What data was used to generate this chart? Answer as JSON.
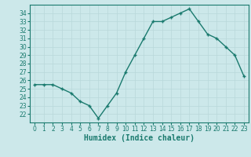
{
  "x": [
    0,
    1,
    2,
    3,
    4,
    5,
    6,
    7,
    8,
    9,
    10,
    11,
    12,
    13,
    14,
    15,
    16,
    17,
    18,
    19,
    20,
    21,
    22,
    23
  ],
  "y": [
    25.5,
    25.5,
    25.5,
    25.0,
    24.5,
    23.5,
    23.0,
    21.5,
    23.0,
    24.5,
    27.0,
    29.0,
    31.0,
    33.0,
    33.0,
    33.5,
    34.0,
    34.5,
    33.0,
    31.5,
    31.0,
    30.0,
    29.0,
    26.5
  ],
  "line_color": "#1a7a6e",
  "marker_color": "#1a7a6e",
  "bg_color": "#cce8ea",
  "grid_color": "#b8d8da",
  "xlabel": "Humidex (Indice chaleur)",
  "xlim": [
    -0.5,
    23.5
  ],
  "ylim": [
    21.0,
    35.0
  ],
  "yticks": [
    22,
    23,
    24,
    25,
    26,
    27,
    28,
    29,
    30,
    31,
    32,
    33,
    34
  ],
  "xticks": [
    0,
    1,
    2,
    3,
    4,
    5,
    6,
    7,
    8,
    9,
    10,
    11,
    12,
    13,
    14,
    15,
    16,
    17,
    18,
    19,
    20,
    21,
    22,
    23
  ],
  "tick_fontsize": 5.5,
  "label_fontsize": 7,
  "line_width": 1.0,
  "marker_size": 3.0
}
